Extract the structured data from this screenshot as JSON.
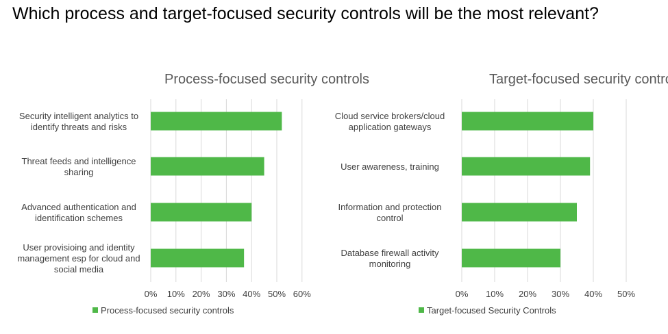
{
  "page_title": "Which process and target-focused security controls will be the most relevant?",
  "colors": {
    "bar": "#4fb848",
    "grid": "#d9d9d9",
    "text": "#404040",
    "chart_title": "#595959"
  },
  "chart_data": [
    {
      "type": "bar",
      "orientation": "horizontal",
      "title": "Process-focused security controls",
      "categories": [
        [
          "Security intelligent analytics to",
          "identify threats and risks"
        ],
        [
          "Threat feeds and intelligence",
          "sharing"
        ],
        [
          "Advanced authentication and",
          "identification schemes"
        ],
        [
          "User provisioing and identity",
          "management esp for cloud and",
          "social media"
        ]
      ],
      "series": [
        {
          "name": "Process-focused security controls",
          "values": [
            52,
            45,
            40,
            37
          ]
        }
      ],
      "xlim": [
        0,
        60
      ],
      "ticks": [
        "0%",
        "10%",
        "20%",
        "30%",
        "40%",
        "50%",
        "60%"
      ],
      "tick_values": [
        0,
        10,
        20,
        30,
        40,
        50,
        60
      ],
      "grid": true,
      "legend": "bottom"
    },
    {
      "type": "bar",
      "orientation": "horizontal",
      "title": "Target-focused security controls",
      "categories": [
        [
          "Cloud service brokers/cloud",
          "application gateways"
        ],
        [
          "User awareness, training"
        ],
        [
          "Information and protection",
          "control"
        ],
        [
          "Database firewall activity",
          "monitoring"
        ]
      ],
      "series": [
        {
          "name": "Target-focused Security Controls",
          "values": [
            40,
            39,
            35,
            30
          ]
        }
      ],
      "xlim": [
        0,
        50
      ],
      "ticks": [
        "0%",
        "10%",
        "20%",
        "30%",
        "40%",
        "50%"
      ],
      "tick_values": [
        0,
        10,
        20,
        30,
        40,
        50
      ],
      "grid": true,
      "legend": "bottom"
    }
  ]
}
